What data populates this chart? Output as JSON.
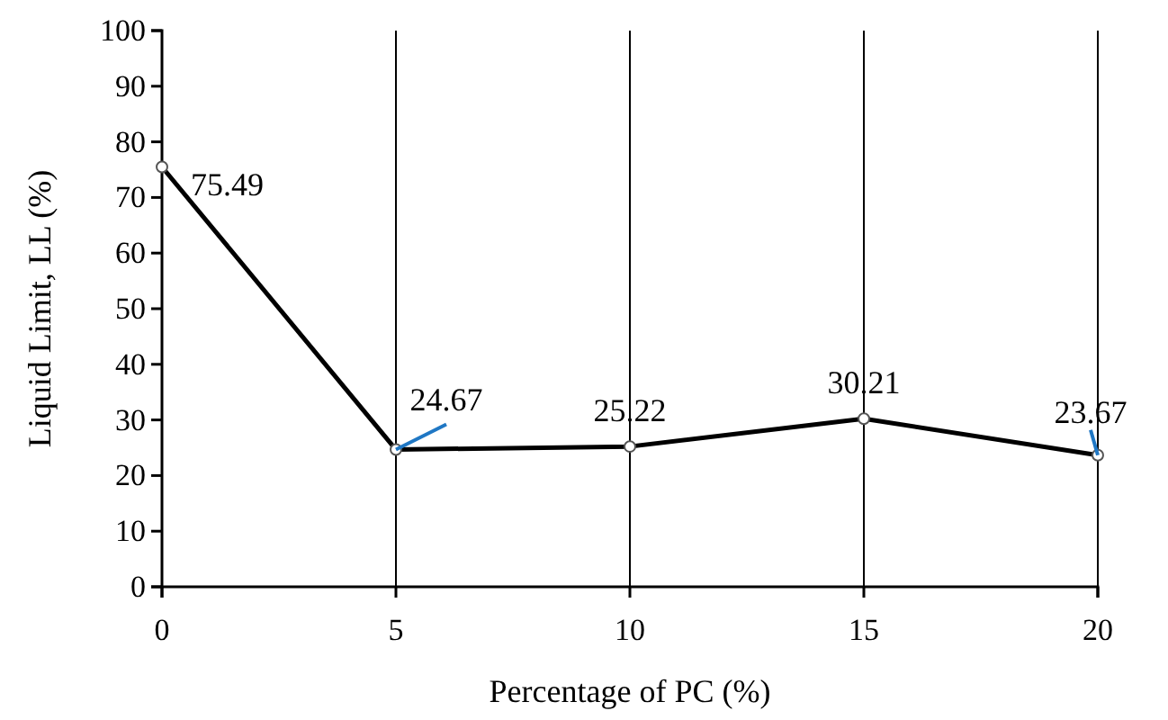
{
  "chart_data": {
    "type": "line",
    "xlabel": "Percentage of PC (%)",
    "ylabel": "Liquid Limit, LL (%)",
    "x": [
      0,
      5,
      10,
      15,
      20
    ],
    "series": [
      {
        "color": "#000000",
        "values": [
          75.49,
          24.67,
          25.22,
          30.21,
          23.67
        ]
      }
    ],
    "xlim": [
      0,
      20
    ],
    "xticks": [
      0,
      5,
      10,
      15,
      20
    ],
    "ylim": [
      0,
      100
    ],
    "yticks": [
      0,
      10,
      20,
      30,
      40,
      50,
      60,
      70,
      80,
      90,
      100
    ],
    "grid": "x",
    "marker": "circle",
    "line_style": "solid",
    "data_labels": true
  }
}
